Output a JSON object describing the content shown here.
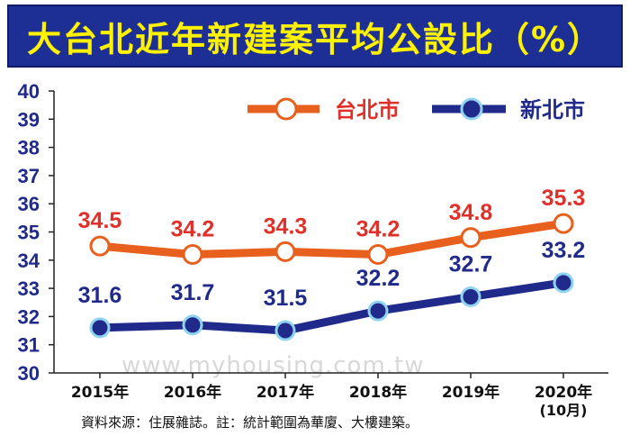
{
  "title": "大台北近年新建案平均公設比（%）",
  "source": "資料來源：住展雜誌。註：統計範圍為華廈、大樓建築。",
  "watermark": "www.myhousing.com.tw",
  "colors": {
    "title_bg": "#1d2f94",
    "title_text": "#fff200",
    "taipei": "#e8601e",
    "taipei_label": "#e0302a",
    "new_taipei": "#1f2a8a",
    "new_taipei_marker": "#8fd3f0"
  },
  "chart_data": {
    "type": "line",
    "title": "大台北近年新建案平均公設比（%）",
    "categories": [
      "2015年",
      "2016年",
      "2017年",
      "2018年",
      "2019年",
      "2020年"
    ],
    "category_sublabels": [
      "",
      "",
      "",
      "",
      "",
      "(10月)"
    ],
    "series": [
      {
        "name": "台北市",
        "values": [
          34.5,
          34.2,
          34.3,
          34.2,
          34.8,
          35.3
        ]
      },
      {
        "name": "新北市",
        "values": [
          31.6,
          31.7,
          31.5,
          32.2,
          32.7,
          33.2
        ]
      }
    ],
    "ylim": [
      30,
      40
    ],
    "yticks": [
      30,
      31,
      32,
      33,
      34,
      35,
      36,
      37,
      38,
      39,
      40
    ],
    "legend_position": "top-right",
    "grid": false
  }
}
